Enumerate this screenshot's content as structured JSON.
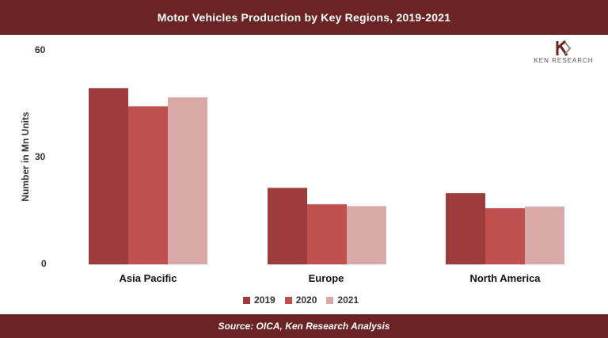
{
  "header": {
    "title": "Motor Vehicles Production by Key Regions, 2019-2021"
  },
  "footer": {
    "source": "Source: OICA, Ken Research Analysis"
  },
  "logo": {
    "text": "KEN RESEARCH"
  },
  "colors": {
    "2019": "#9c3d3b",
    "2020": "#c0504d",
    "2021": "#d9a9a7",
    "brand": "#6b2323"
  },
  "chart_data": {
    "type": "bar",
    "title": "Motor Vehicles Production by Key Regions, 2019-2021",
    "xlabel": "",
    "ylabel": "Number in Mn Units",
    "ylim": [
      0,
      60
    ],
    "yticks": [
      "0",
      "30",
      "60"
    ],
    "grid": false,
    "legend_position": "bottom",
    "categories": [
      "Asia Pacific",
      "Europe",
      "North America"
    ],
    "series": [
      {
        "name": "2019",
        "values": [
          49.3,
          21.4,
          19.9
        ]
      },
      {
        "name": "2020",
        "values": [
          44.2,
          16.8,
          15.7
        ]
      },
      {
        "name": "2021",
        "values": [
          46.7,
          16.3,
          16.2
        ]
      }
    ]
  }
}
